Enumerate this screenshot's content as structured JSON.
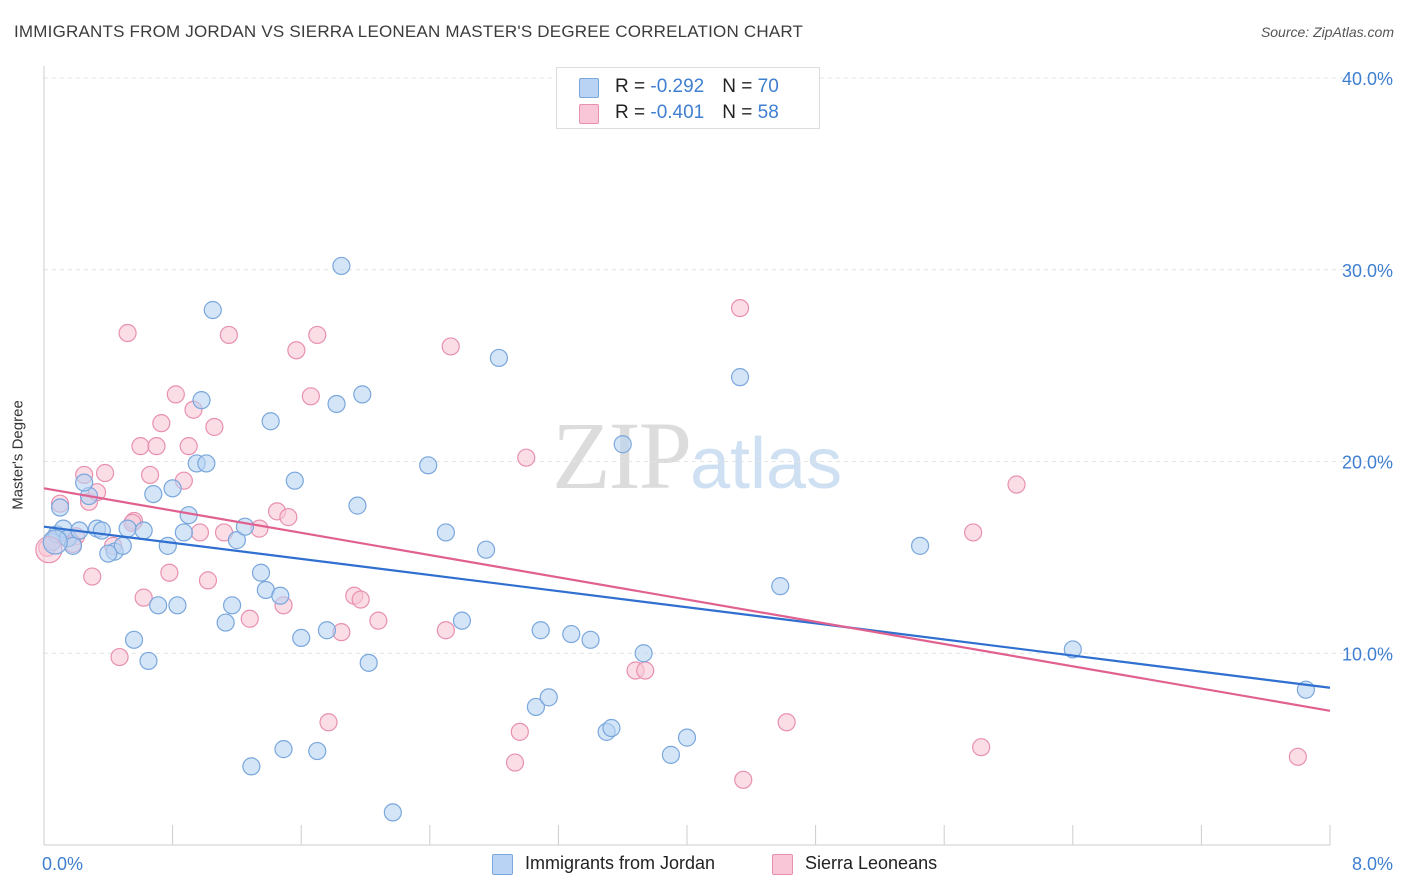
{
  "title": "IMMIGRANTS FROM JORDAN VS SIERRA LEONEAN MASTER'S DEGREE CORRELATION CHART",
  "source": "Source: ZipAtlas.com",
  "watermark": {
    "zip": "ZIP",
    "atlas": "atlas"
  },
  "legend": {
    "row1": {
      "r_label": "R = ",
      "r_value": "-0.292",
      "n_label": "N = ",
      "n_value": "70"
    },
    "row2": {
      "r_label": "R = ",
      "r_value": "-0.401",
      "n_label": "N = ",
      "n_value": "58"
    }
  },
  "bottom_legend": {
    "jordan": "Immigrants from Jordan",
    "sierra": "Sierra Leoneans"
  },
  "colors": {
    "jordan_fill": "#b8d3f4",
    "jordan_stroke": "#7aa7dc",
    "jordan_line": "#2f6fcf",
    "sierra_fill": "#f8c6d6",
    "sierra_stroke": "#e890b0",
    "sierra_line": "#e0618f",
    "tick_label": "#3f7fd0",
    "grid": "#e4e4e4"
  },
  "chart_data": {
    "type": "scatter",
    "title": "IMMIGRANTS FROM JORDAN VS SIERRA LEONEAN MASTER'S DEGREE CORRELATION CHART",
    "xlabel": "",
    "ylabel": "Master's Degree",
    "xlim": [
      0,
      8
    ],
    "ylim": [
      0,
      40
    ],
    "x_tick_labels": [
      "0.0%",
      "8.0%"
    ],
    "y_ticks": [
      10,
      20,
      30,
      40
    ],
    "y_tick_labels": [
      "10.0%",
      "20.0%",
      "30.0%",
      "40.0%"
    ],
    "grid": true,
    "legend_position": "top-center",
    "series": [
      {
        "name": "Immigrants from Jordan",
        "r": -0.292,
        "n": 70,
        "trend": {
          "x": [
            0,
            8
          ],
          "y": [
            16.6,
            8.2
          ]
        },
        "points": [
          [
            0.05,
            15.8
          ],
          [
            0.08,
            16.2
          ],
          [
            0.1,
            17.6
          ],
          [
            0.12,
            16.5
          ],
          [
            0.15,
            16.0
          ],
          [
            0.18,
            15.6
          ],
          [
            0.22,
            16.4
          ],
          [
            0.28,
            18.2
          ],
          [
            0.33,
            16.5
          ],
          [
            0.36,
            16.4
          ],
          [
            0.44,
            15.3
          ],
          [
            0.49,
            15.6
          ],
          [
            0.52,
            16.5
          ],
          [
            0.56,
            10.7
          ],
          [
            0.65,
            9.6
          ],
          [
            0.68,
            18.3
          ],
          [
            0.71,
            12.5
          ],
          [
            0.77,
            15.6
          ],
          [
            0.8,
            18.6
          ],
          [
            0.83,
            12.5
          ],
          [
            0.87,
            16.3
          ],
          [
            0.9,
            17.2
          ],
          [
            0.95,
            19.9
          ],
          [
            0.98,
            23.2
          ],
          [
            1.01,
            19.9
          ],
          [
            1.05,
            27.9
          ],
          [
            1.13,
            11.6
          ],
          [
            1.17,
            12.5
          ],
          [
            1.2,
            15.9
          ],
          [
            1.25,
            16.6
          ],
          [
            1.29,
            4.1
          ],
          [
            1.35,
            14.2
          ],
          [
            1.38,
            13.3
          ],
          [
            1.41,
            22.1
          ],
          [
            1.47,
            13.0
          ],
          [
            1.49,
            5.0
          ],
          [
            1.56,
            19.0
          ],
          [
            1.6,
            10.8
          ],
          [
            1.7,
            4.9
          ],
          [
            1.76,
            11.2
          ],
          [
            1.82,
            23.0
          ],
          [
            1.85,
            30.2
          ],
          [
            1.95,
            17.7
          ],
          [
            1.98,
            23.5
          ],
          [
            2.02,
            9.5
          ],
          [
            2.17,
            1.7
          ],
          [
            2.39,
            19.8
          ],
          [
            2.5,
            16.3
          ],
          [
            2.6,
            11.7
          ],
          [
            2.75,
            15.4
          ],
          [
            2.83,
            25.4
          ],
          [
            3.06,
            7.2
          ],
          [
            3.09,
            11.2
          ],
          [
            3.14,
            7.7
          ],
          [
            3.28,
            11.0
          ],
          [
            3.4,
            10.7
          ],
          [
            3.5,
            5.9
          ],
          [
            3.53,
            6.1
          ],
          [
            3.6,
            20.9
          ],
          [
            3.73,
            10.0
          ],
          [
            3.9,
            4.7
          ],
          [
            4.0,
            5.6
          ],
          [
            4.33,
            24.4
          ],
          [
            4.58,
            13.5
          ],
          [
            5.45,
            15.6
          ],
          [
            6.4,
            10.2
          ],
          [
            7.85,
            8.1
          ],
          [
            0.62,
            16.4
          ],
          [
            0.25,
            18.9
          ],
          [
            0.4,
            15.2
          ]
        ]
      },
      {
        "name": "Sierra Leoneans",
        "r": -0.401,
        "n": 58,
        "trend": {
          "x": [
            0,
            8
          ],
          "y": [
            18.6,
            7.0
          ]
        },
        "points": [
          [
            0.02,
            15.5
          ],
          [
            0.06,
            15.9
          ],
          [
            0.1,
            17.8
          ],
          [
            0.14,
            16.0
          ],
          [
            0.2,
            16.1
          ],
          [
            0.25,
            19.3
          ],
          [
            0.28,
            17.9
          ],
          [
            0.3,
            14.0
          ],
          [
            0.33,
            18.4
          ],
          [
            0.38,
            19.4
          ],
          [
            0.43,
            15.6
          ],
          [
            0.47,
            9.8
          ],
          [
            0.52,
            26.7
          ],
          [
            0.56,
            16.9
          ],
          [
            0.6,
            20.8
          ],
          [
            0.62,
            12.9
          ],
          [
            0.66,
            19.3
          ],
          [
            0.7,
            20.8
          ],
          [
            0.73,
            22.0
          ],
          [
            0.78,
            14.2
          ],
          [
            0.82,
            23.5
          ],
          [
            0.87,
            19.0
          ],
          [
            0.9,
            20.8
          ],
          [
            0.93,
            22.7
          ],
          [
            0.97,
            16.3
          ],
          [
            1.02,
            13.8
          ],
          [
            1.06,
            21.8
          ],
          [
            1.12,
            16.3
          ],
          [
            1.15,
            26.6
          ],
          [
            1.28,
            11.8
          ],
          [
            1.34,
            16.5
          ],
          [
            1.45,
            17.4
          ],
          [
            1.49,
            12.5
          ],
          [
            1.52,
            17.1
          ],
          [
            1.57,
            25.8
          ],
          [
            1.66,
            23.4
          ],
          [
            1.7,
            26.6
          ],
          [
            1.77,
            6.4
          ],
          [
            1.85,
            11.1
          ],
          [
            1.93,
            13.0
          ],
          [
            1.97,
            12.8
          ],
          [
            2.08,
            11.7
          ],
          [
            2.5,
            11.2
          ],
          [
            2.53,
            26.0
          ],
          [
            2.93,
            4.3
          ],
          [
            2.96,
            5.9
          ],
          [
            3.0,
            20.2
          ],
          [
            3.68,
            9.1
          ],
          [
            3.74,
            9.1
          ],
          [
            4.33,
            28.0
          ],
          [
            4.35,
            3.4
          ],
          [
            4.62,
            6.4
          ],
          [
            5.78,
            16.3
          ],
          [
            5.83,
            5.1
          ],
          [
            6.05,
            18.8
          ],
          [
            7.8,
            4.6
          ],
          [
            0.55,
            16.8
          ],
          [
            0.18,
            15.7
          ]
        ]
      }
    ]
  }
}
